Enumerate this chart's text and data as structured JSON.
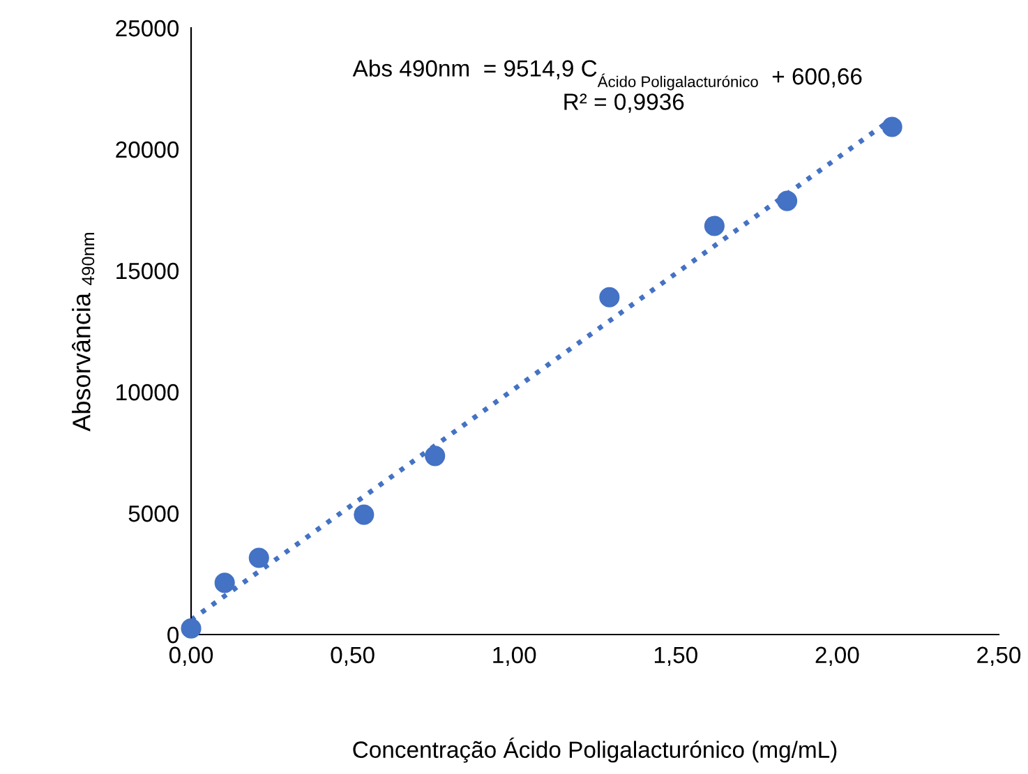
{
  "chart_data": {
    "type": "scatter",
    "xlabel": "Concentração Ácido Poligalacturónico (mg/mL)",
    "ylabel": "Absorvância $_{490nm}$",
    "annotations": [
      "Abs 490nm  = 9514,9 C$_{Ácido Poligalacturónico}$  + 600,66",
      "R² = 0,9936"
    ],
    "series": [
      {
        "color": "#4472c4",
        "marker": "circle",
        "x": [
          0.0,
          0.104,
          0.21,
          0.535,
          0.755,
          1.295,
          1.62,
          1.845,
          2.17
        ],
        "values": [
          250,
          2130,
          3160,
          4940,
          7360,
          13900,
          16840,
          17870,
          20920
        ]
      },
      {
        "type": "line",
        "color": "#4472c4",
        "line_style": "dotted",
        "marker": "none",
        "x": [
          0.0,
          2.17
        ],
        "values": [
          600,
          21250
        ]
      }
    ],
    "xlim": [
      0,
      2.5
    ],
    "xticks": [
      {
        "value": 0,
        "label": "0,00"
      },
      {
        "value": 0.5,
        "label": "0,50"
      },
      {
        "value": 1.0,
        "label": "1,00"
      },
      {
        "value": 1.5,
        "label": "1,50"
      },
      {
        "value": 2.0,
        "label": "2,00"
      },
      {
        "value": 2.5,
        "label": "2,50"
      }
    ],
    "ylim": [
      0,
      25000
    ],
    "yticks": [
      0,
      5000,
      10000,
      15000,
      20000,
      25000
    ],
    "grid": false,
    "legend": false
  }
}
